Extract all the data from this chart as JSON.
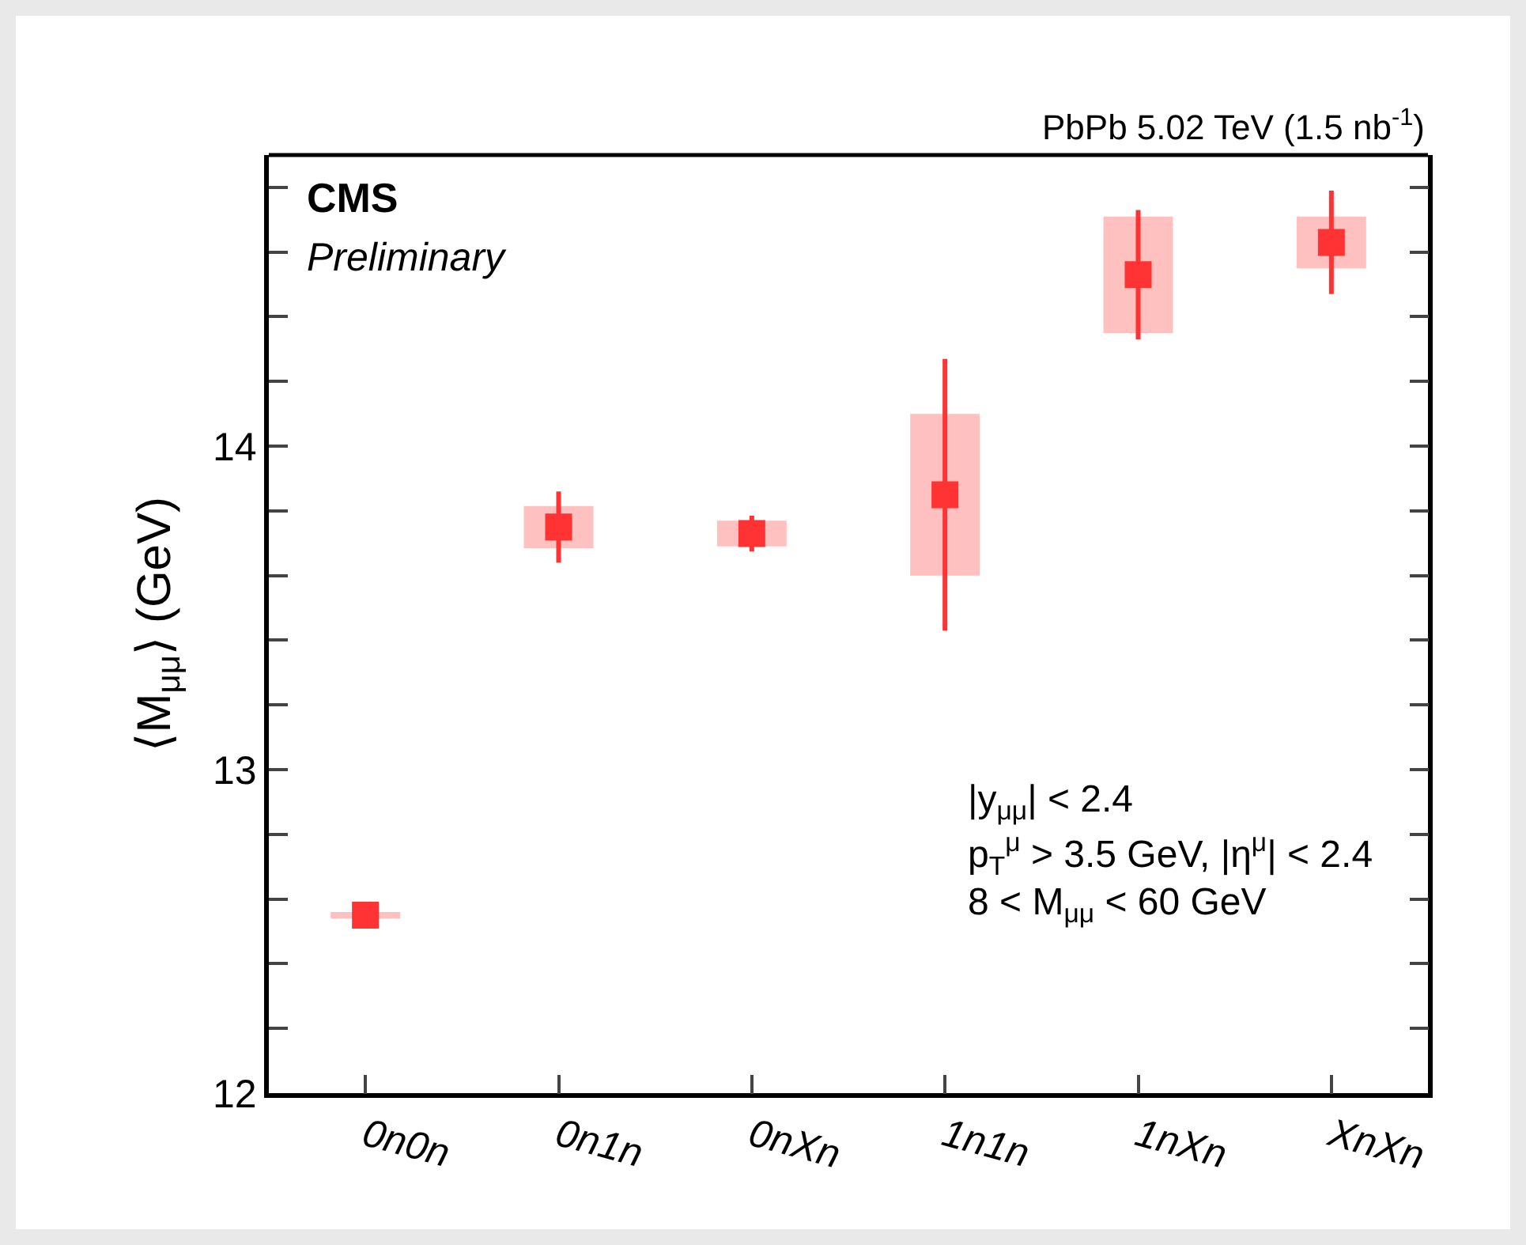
{
  "chart_data": {
    "type": "scatter",
    "subtitle": "PbPb 5.02 TeV (1.5 nb$^{-1}$)",
    "ylabel": "⟨M$_{μμ}$⟩ (GeV)",
    "categories": [
      "0n0n",
      "0n1n",
      "0nXn",
      "1n1n",
      "1nXn",
      "XnXn"
    ],
    "series": [
      {
        "type": "bar",
        "color": "#ffc0c0",
        "base": [
          12.54,
          13.685,
          13.69,
          13.6,
          14.35,
          14.55
        ],
        "values": [
          0.02,
          0.13,
          0.08,
          0.5,
          0.36,
          0.16
        ]
      },
      {
        "color": "#ff3333",
        "values": [
          12.55,
          13.75,
          13.73,
          13.85,
          14.53,
          14.63
        ],
        "errors": [
          null,
          0.11,
          0.055,
          0.42,
          0.2,
          0.16
        ]
      }
    ],
    "marker": "square",
    "grid": false,
    "legend": false,
    "ylim": [
      12,
      14.9
    ],
    "yticks": [
      12,
      {
        "value": 12.2,
        "label": null
      },
      {
        "value": 12.4,
        "label": null
      },
      {
        "value": 12.6,
        "label": null
      },
      {
        "value": 12.8,
        "label": null
      },
      13,
      {
        "value": 13.2,
        "label": null
      },
      {
        "value": 13.4,
        "label": null
      },
      {
        "value": 13.6,
        "label": null
      },
      {
        "value": 13.8,
        "label": null
      },
      14,
      {
        "value": 14.2,
        "label": null
      },
      {
        "value": 14.4,
        "label": null
      },
      {
        "value": 14.6,
        "label": null
      },
      {
        "value": 14.8,
        "label": null
      }
    ],
    "annotations": [
      "CMS",
      "Preliminary",
      "|y$_{μμ}$| < 2.4",
      "p$_{T}$$^{μ}$ > 3.5 GeV, |η$^{μ}$| < 2.4",
      "8 < M$_{μμ}$ < 60 GeV"
    ]
  }
}
